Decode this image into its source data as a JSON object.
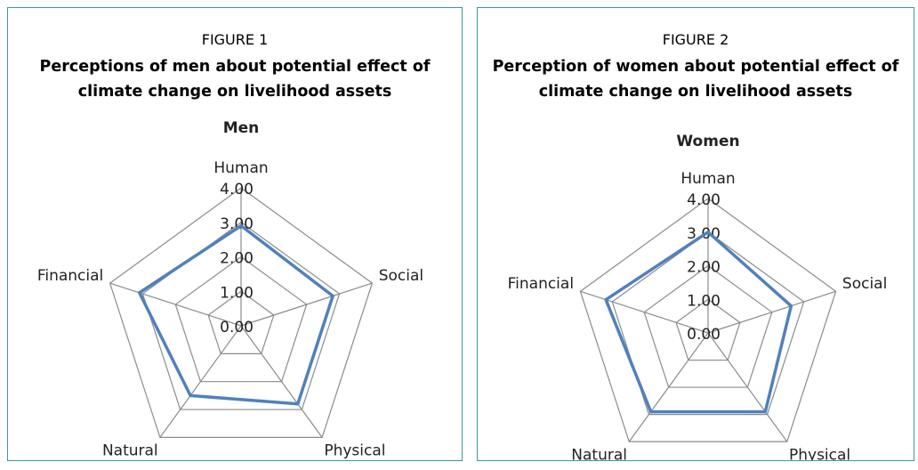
{
  "chart_data": [
    {
      "type": "radar",
      "figure": "FIGURE 1",
      "title": "Perceptions of men about potential effect of climate change on livelihood assets",
      "subtitle": "Men",
      "categories": [
        "Human",
        "Social",
        "Physical",
        "Natural",
        "Financial"
      ],
      "values": [
        2.9,
        2.8,
        2.8,
        2.5,
        3.1
      ],
      "color": "#4f81bd",
      "ylim": [
        0,
        4
      ],
      "yticks": [
        {
          "value": 0,
          "label": "0.00"
        },
        {
          "value": 1,
          "label": "1.00"
        },
        {
          "value": 2,
          "label": "2.00"
        },
        {
          "value": 3,
          "label": "3.00"
        },
        {
          "value": 4,
          "label": "4.00"
        }
      ],
      "grid": true
    },
    {
      "type": "radar",
      "figure": "FIGURE 2",
      "title": "Perception of women about potential effect of climate change on livelihood assets",
      "subtitle": "Women",
      "categories": [
        "Human",
        "Social",
        "Physical",
        "Natural",
        "Financial"
      ],
      "values": [
        3.0,
        2.6,
        2.9,
        2.9,
        3.2
      ],
      "color": "#4f81bd",
      "ylim": [
        0,
        4
      ],
      "yticks": [
        {
          "value": 0,
          "label": "0.00"
        },
        {
          "value": 1,
          "label": "1.00"
        },
        {
          "value": 2,
          "label": "2.00"
        },
        {
          "value": 3,
          "label": "3.00"
        },
        {
          "value": 4,
          "label": "4.00"
        }
      ],
      "grid": true
    }
  ]
}
